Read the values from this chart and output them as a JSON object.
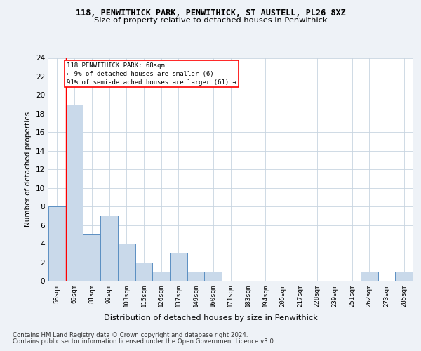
{
  "title1": "118, PENWITHICK PARK, PENWITHICK, ST AUSTELL, PL26 8XZ",
  "title2": "Size of property relative to detached houses in Penwithick",
  "xlabel": "Distribution of detached houses by size in Penwithick",
  "ylabel": "Number of detached properties",
  "categories": [
    "58sqm",
    "69sqm",
    "81sqm",
    "92sqm",
    "103sqm",
    "115sqm",
    "126sqm",
    "137sqm",
    "149sqm",
    "160sqm",
    "171sqm",
    "183sqm",
    "194sqm",
    "205sqm",
    "217sqm",
    "228sqm",
    "239sqm",
    "251sqm",
    "262sqm",
    "273sqm",
    "285sqm"
  ],
  "values": [
    8,
    19,
    5,
    7,
    4,
    2,
    1,
    3,
    1,
    1,
    0,
    0,
    0,
    0,
    0,
    0,
    0,
    0,
    1,
    0,
    1
  ],
  "bar_color": "#c9d9ea",
  "bar_edge_color": "#5b8fc2",
  "redline_x": 0.5,
  "ylim": [
    0,
    24
  ],
  "yticks": [
    0,
    2,
    4,
    6,
    8,
    10,
    12,
    14,
    16,
    18,
    20,
    22,
    24
  ],
  "annotation_box_text": "118 PENWITHICK PARK: 68sqm\n← 9% of detached houses are smaller (6)\n91% of semi-detached houses are larger (61) →",
  "footer1": "Contains HM Land Registry data © Crown copyright and database right 2024.",
  "footer2": "Contains public sector information licensed under the Open Government Licence v3.0.",
  "bg_color": "#eef2f7",
  "plot_bg_color": "#ffffff",
  "grid_color": "#c8d4e0"
}
